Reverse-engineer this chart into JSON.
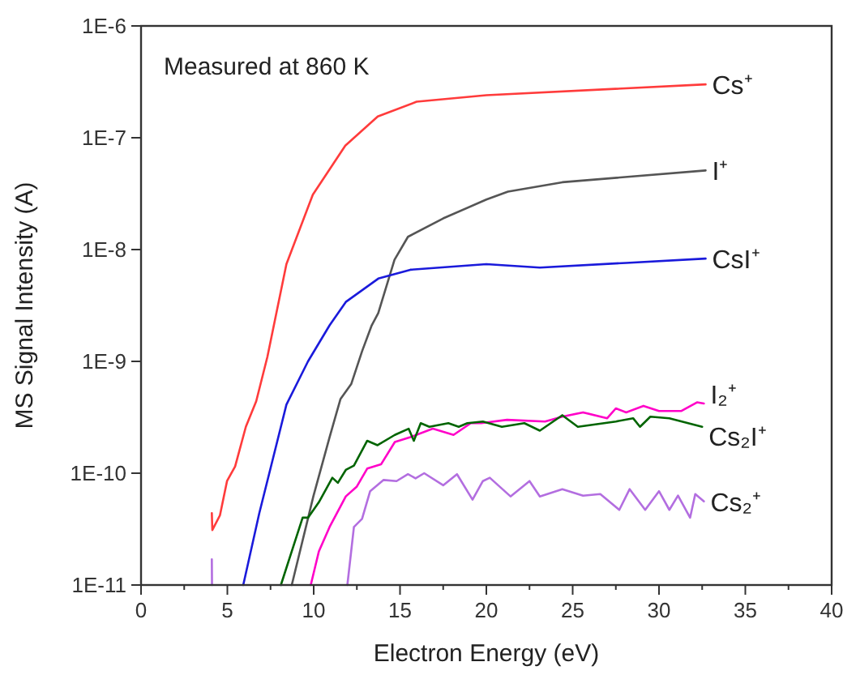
{
  "chart_data": {
    "type": "line",
    "xlabel": "Electron Energy (eV)",
    "ylabel": "MS Signal Intensity (A)",
    "log": "y",
    "grid": false,
    "marker": "none",
    "line_style": "solid",
    "xlim": [
      0,
      40
    ],
    "xticks": [
      0,
      {
        "value": 2.5,
        "label": null
      },
      5,
      {
        "value": 7.5,
        "label": null
      },
      10,
      {
        "value": 12.5,
        "label": null
      },
      15,
      {
        "value": 17.5,
        "label": null
      },
      20,
      {
        "value": 22.5,
        "label": null
      },
      25,
      {
        "value": 27.5,
        "label": null
      },
      30,
      {
        "value": 32.5,
        "label": null
      },
      35,
      {
        "value": 37.5,
        "label": null
      },
      40
    ],
    "ylim": [
      1e-11,
      1e-06
    ],
    "yticks": [
      {
        "value": 1e-11,
        "label": "1E-11"
      },
      {
        "value": 1e-10,
        "label": "1E-10"
      },
      {
        "value": 1e-09,
        "label": "1E-9"
      },
      {
        "value": 1e-08,
        "label": "1E-8"
      },
      {
        "value": 1e-07,
        "label": "1E-7"
      },
      {
        "value": 1e-06,
        "label": "1E-6"
      }
    ],
    "annotations": [
      "Measured at 860 K"
    ],
    "series": [
      {
        "name": "Cs⁺",
        "color": "#ff3b3b",
        "x": [
          4.1,
          4.13,
          4.57,
          4.98,
          5.45,
          6.07,
          6.67,
          7.32,
          8.42,
          9.95,
          11.83,
          13.71,
          15.96,
          20.0,
          32.7
        ],
        "values": [
          4.4e-11,
          3.1e-11,
          4.2e-11,
          8.5e-11,
          1.15e-10,
          2.6e-10,
          4.4e-10,
          1.1e-09,
          7.4e-09,
          3.1e-08,
          8.5e-08,
          1.55e-07,
          2.1e-07,
          2.4e-07,
          3e-07
        ]
      },
      {
        "name": "I⁺",
        "color": "#555555",
        "x": [
          8.73,
          9.98,
          10.92,
          11.55,
          12.18,
          12.8,
          13.36,
          13.74,
          14.68,
          15.46,
          17.5,
          20.0,
          21.25,
          24.4,
          32.7
        ],
        "values": [
          1e-11,
          6.2e-11,
          2.1e-10,
          4.6e-10,
          6.3e-10,
          1.23e-09,
          2.1e-09,
          2.7e-09,
          8.1e-09,
          1.3e-08,
          1.9e-08,
          2.8e-08,
          3.3e-08,
          4e-08,
          5.1e-08
        ]
      },
      {
        "name": "CsI⁺",
        "color": "#1a1adb",
        "x": [
          5.92,
          6.85,
          7.64,
          8.42,
          9.67,
          10.92,
          11.86,
          13.74,
          15.6,
          20.0,
          23.1,
          28.1,
          32.7
        ],
        "values": [
          1e-11,
          4.4e-11,
          1.35e-10,
          4.1e-10,
          1e-09,
          2.1e-09,
          3.4e-09,
          5.5e-09,
          6.6e-09,
          7.4e-09,
          6.9e-09,
          7.6e-09,
          8.3e-09
        ]
      },
      {
        "name": "I₂⁺",
        "color": "#ff00c8",
        "x": [
          9.83,
          10.3,
          10.92,
          11.86,
          12.5,
          13.1,
          13.9,
          14.7,
          15.6,
          16.9,
          18.1,
          19.1,
          19.7,
          21.2,
          23.4,
          24.4,
          25.6,
          27.0,
          27.5,
          28.1,
          29.1,
          30.0,
          31.3,
          32.2,
          32.6
        ],
        "values": [
          1e-11,
          2e-11,
          3.3e-11,
          6.2e-11,
          7.6e-11,
          1.1e-10,
          1.2e-10,
          1.9e-10,
          2.1e-10,
          2.5e-10,
          2.2e-10,
          2.8e-10,
          2.8e-10,
          3e-10,
          2.9e-10,
          3.2e-10,
          3.5e-10,
          3.1e-10,
          3.8e-10,
          3.5e-10,
          4e-10,
          3.6e-10,
          3.6e-10,
          4.3e-10,
          4.2e-10
        ]
      },
      {
        "name": "Cs₂I⁺",
        "color": "#006400",
        "x": [
          8.1,
          8.73,
          9.36,
          9.67,
          10.3,
          11.08,
          11.4,
          11.86,
          12.33,
          13.1,
          13.7,
          14.7,
          15.5,
          15.8,
          16.2,
          16.7,
          17.8,
          18.4,
          18.9,
          19.8,
          20.9,
          22.2,
          23.1,
          24.4,
          25.3,
          27.5,
          28.5,
          28.9,
          29.5,
          30.6,
          32.5
        ],
        "values": [
          1e-11,
          2e-11,
          4e-11,
          4e-11,
          5.5e-11,
          9.1e-11,
          8.2e-11,
          1.07e-10,
          1.17e-10,
          1.95e-10,
          1.78e-10,
          2.2e-10,
          2.5e-10,
          1.95e-10,
          2.8e-10,
          2.6e-10,
          2.8e-10,
          2.6e-10,
          2.8e-10,
          2.9e-10,
          2.6e-10,
          2.8e-10,
          2.4e-10,
          3.3e-10,
          2.6e-10,
          2.9e-10,
          3.1e-10,
          2.6e-10,
          3.2e-10,
          3.1e-10,
          2.6e-10
        ]
      },
      {
        "name": "Cs₂⁺",
        "color": "#b36ee0",
        "x": [
          4.1,
          4.11,
          null,
          11.95,
          12.33,
          12.8,
          13.27,
          14.05,
          14.8,
          15.46,
          15.9,
          16.4,
          17.5,
          18.3,
          19.2,
          19.8,
          20.2,
          21.4,
          22.5,
          23.1,
          24.4,
          25.6,
          26.6,
          27.7,
          28.3,
          29.2,
          30.0,
          30.6,
          31.1,
          31.8,
          32.1,
          32.6
        ],
        "values": [
          1.7e-11,
          1e-11,
          null,
          1e-11,
          3.3e-11,
          3.9e-11,
          6.9e-11,
          8.7e-11,
          8.5e-11,
          9.8e-11,
          9e-11,
          1e-10,
          7.8e-11,
          9.8e-11,
          5.8e-11,
          8.5e-11,
          9.1e-11,
          6.2e-11,
          8.5e-11,
          6.2e-11,
          7.2e-11,
          6.3e-11,
          6.5e-11,
          4.7e-11,
          7.2e-11,
          4.7e-11,
          6.9e-11,
          4.7e-11,
          6.3e-11,
          4e-11,
          6.5e-11,
          5.6e-11
        ]
      }
    ]
  }
}
